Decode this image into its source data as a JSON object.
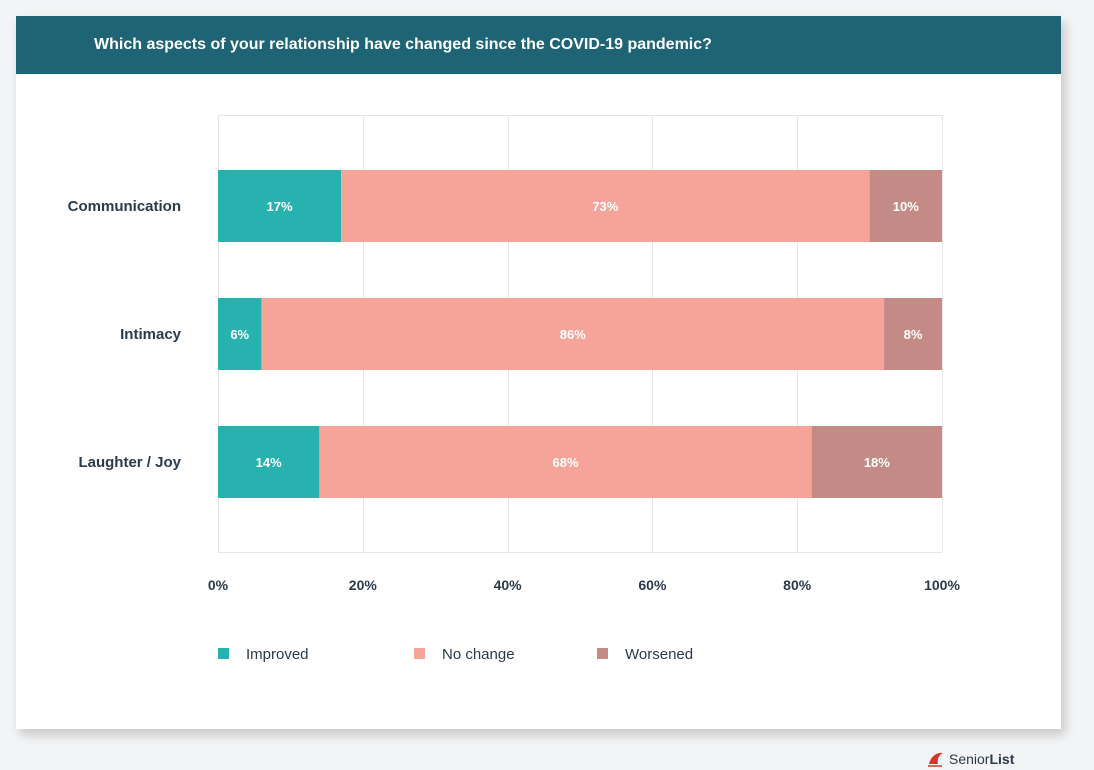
{
  "chart_data": {
    "type": "bar",
    "orientation": "horizontal",
    "stacked": true,
    "title": "Which aspects of your relationship have changed since the COVID-19 pandemic?",
    "categories": [
      "Communication",
      "Intimacy",
      "Laughter / Joy"
    ],
    "series": [
      {
        "name": "Improved",
        "values": [
          17,
          6,
          14
        ],
        "labels": [
          "17%",
          "6%",
          "14%"
        ],
        "color": "#27b2b0"
      },
      {
        "name": "No change",
        "values": [
          73,
          86,
          68
        ],
        "labels": [
          "73%",
          "86%",
          "68%"
        ],
        "color": "#f6a499"
      },
      {
        "name": "Worsened",
        "values": [
          10,
          8,
          18
        ],
        "labels": [
          "10%",
          "8%",
          "18%"
        ],
        "color": "#c38a86"
      }
    ],
    "x_ticks": [
      "0%",
      "20%",
      "40%",
      "60%",
      "80%",
      "100%"
    ],
    "xlim": [
      0,
      100
    ],
    "grid": true,
    "legend_position": "bottom"
  },
  "colors": {
    "header_bg": "#1e6474",
    "axis_text": "#2b3a4a",
    "grid": "#e6e6e6"
  },
  "brand": {
    "prefix": "Senior",
    "suffix": "List",
    "icon": "seniorlist-logo-icon"
  }
}
